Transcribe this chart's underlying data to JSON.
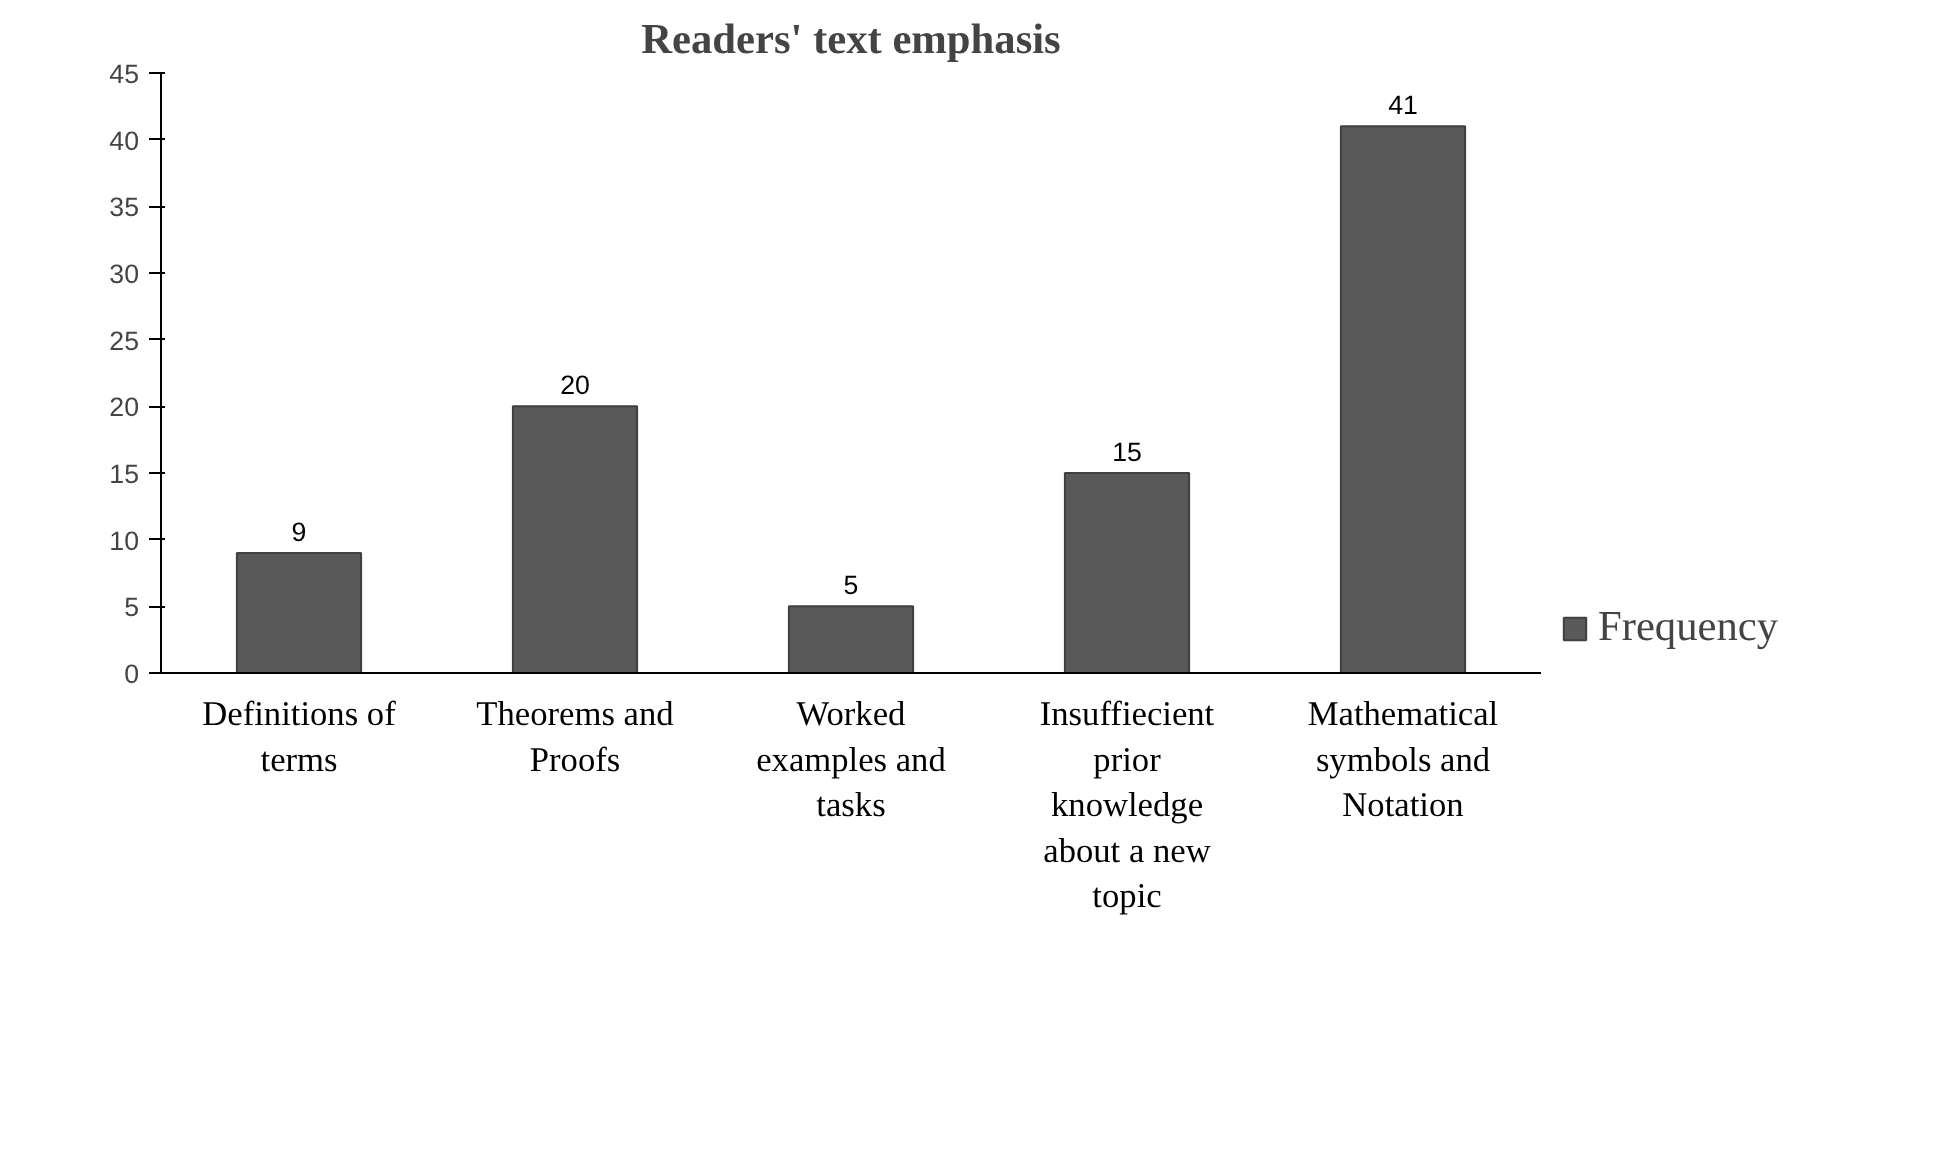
{
  "chart_data": {
    "type": "bar",
    "title": "Readers' text emphasis",
    "categories": [
      "Definitions of terms",
      "Theorems and Proofs",
      "Worked examples and tasks",
      "Insuffiecient prior knowledge about a new topic",
      "Mathematical symbols and Notation"
    ],
    "series": [
      {
        "name": "Frequency",
        "color": "#595959",
        "values": [
          9,
          20,
          5,
          15,
          41
        ]
      }
    ],
    "ylim": [
      0,
      45
    ],
    "yticks": [
      0,
      5,
      10,
      15,
      20,
      25,
      30,
      35,
      40,
      45
    ],
    "grid": false,
    "legend": "right",
    "data_labels": true
  }
}
